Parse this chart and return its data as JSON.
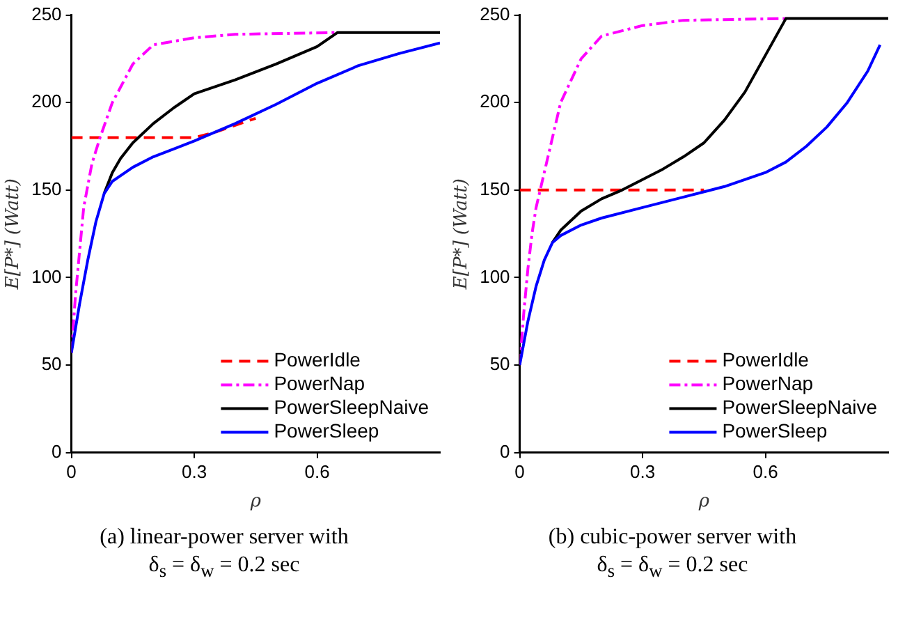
{
  "chart_data": [
    {
      "type": "line",
      "ylabel": "E[P*] (Watt)",
      "xlabel": "ρ",
      "xlim": [
        0,
        0.9
      ],
      "xticks": [
        0,
        0.3,
        0.6
      ],
      "ylim": [
        0,
        250
      ],
      "yticks": [
        0,
        50,
        100,
        150,
        200,
        250
      ],
      "grid": false,
      "legend": "bottom right",
      "marker": "none",
      "annotations": [
        "(a) linear-power server with δ$_{s}$ = δ$_{w}$ = 0.2 sec"
      ],
      "series": [
        {
          "name": "PowerIdle",
          "color": "#ff0000",
          "line_style": "dashed",
          "x": [
            0,
            0.3,
            0.35,
            0.4,
            0.45
          ],
          "values": [
            180,
            180,
            183,
            187,
            191
          ]
        },
        {
          "name": "PowerNap",
          "color": "#ff00ff",
          "line_style": "dashdot",
          "x": [
            0,
            0.01,
            0.02,
            0.03,
            0.05,
            0.07,
            0.1,
            0.15,
            0.2,
            0.3,
            0.4,
            0.65
          ],
          "values": [
            57,
            90,
            115,
            140,
            165,
            180,
            200,
            222,
            233,
            237,
            239,
            240
          ]
        },
        {
          "name": "PowerSleepNaive",
          "color": "#000000",
          "line_style": "solid",
          "x": [
            0.08,
            0.1,
            0.12,
            0.15,
            0.2,
            0.25,
            0.3,
            0.4,
            0.5,
            0.6,
            0.65,
            0.9
          ],
          "values": [
            148,
            160,
            168,
            177,
            188,
            197,
            205,
            213,
            222,
            232,
            240,
            240
          ]
        },
        {
          "name": "PowerSleep",
          "color": "#0000ff",
          "line_style": "solid",
          "x": [
            0,
            0.02,
            0.04,
            0.06,
            0.08,
            0.1,
            0.15,
            0.2,
            0.3,
            0.4,
            0.5,
            0.6,
            0.7,
            0.8,
            0.9
          ],
          "values": [
            57,
            85,
            110,
            132,
            148,
            155,
            163,
            169,
            178,
            188,
            199,
            211,
            221,
            228,
            234
          ]
        }
      ]
    },
    {
      "type": "line",
      "ylabel": "E[P*] (Watt)",
      "xlabel": "ρ",
      "xlim": [
        0,
        0.9
      ],
      "xticks": [
        0,
        0.3,
        0.6
      ],
      "ylim": [
        0,
        250
      ],
      "yticks": [
        0,
        50,
        100,
        150,
        200,
        250
      ],
      "grid": false,
      "legend": "bottom right",
      "marker": "none",
      "annotations": [
        "(b) cubic-power server with δ$_{s}$ = δ$_{w}$ = 0.2 sec"
      ],
      "series": [
        {
          "name": "PowerIdle",
          "color": "#ff0000",
          "line_style": "dashed",
          "x": [
            0,
            0.45
          ],
          "values": [
            150,
            150
          ]
        },
        {
          "name": "PowerNap",
          "color": "#ff00ff",
          "line_style": "dashdot",
          "x": [
            0,
            0.01,
            0.02,
            0.03,
            0.04,
            0.05,
            0.07,
            0.1,
            0.15,
            0.2,
            0.3,
            0.4,
            0.65
          ],
          "values": [
            50,
            80,
            105,
            125,
            140,
            150,
            170,
            200,
            225,
            238,
            244,
            247,
            248
          ]
        },
        {
          "name": "PowerSleepNaive",
          "color": "#000000",
          "line_style": "solid",
          "x": [
            0.08,
            0.1,
            0.15,
            0.2,
            0.25,
            0.3,
            0.35,
            0.4,
            0.45,
            0.5,
            0.55,
            0.6,
            0.65,
            0.9
          ],
          "values": [
            120,
            127,
            138,
            145,
            150,
            156,
            162,
            169,
            177,
            190,
            206,
            227,
            248,
            248
          ]
        },
        {
          "name": "PowerSleep",
          "color": "#0000ff",
          "line_style": "solid",
          "x": [
            0,
            0.02,
            0.04,
            0.06,
            0.08,
            0.1,
            0.15,
            0.2,
            0.3,
            0.4,
            0.5,
            0.6,
            0.65,
            0.7,
            0.75,
            0.8,
            0.85,
            0.88
          ],
          "values": [
            50,
            75,
            95,
            110,
            120,
            124,
            130,
            134,
            140,
            146,
            152,
            160,
            166,
            175,
            186,
            200,
            218,
            233
          ]
        }
      ]
    }
  ]
}
